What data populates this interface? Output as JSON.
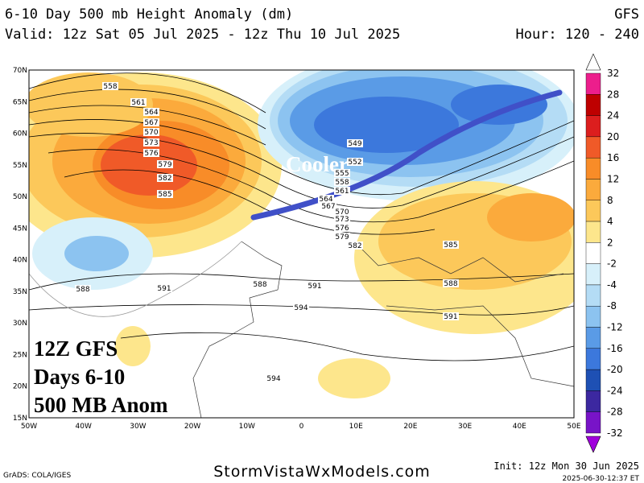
{
  "header": {
    "title": "6-10 Day 500 mb Height Anomaly (dm)",
    "valid": "Valid: 12z Sat 05 Jul 2025 - 12z Thu 10 Jul 2025",
    "model": "GFS",
    "hour": "Hour: 120 - 240"
  },
  "map": {
    "lat_labels": [
      "70N",
      "65N",
      "60N",
      "55N",
      "50N",
      "45N",
      "40N",
      "35N",
      "30N",
      "25N",
      "20N",
      "15N"
    ],
    "lon_labels": [
      "50W",
      "40W",
      "30W",
      "20W",
      "10W",
      "0",
      "10E",
      "20E",
      "30E",
      "40E",
      "50E"
    ],
    "contour_labels": [
      558,
      561,
      564,
      567,
      570,
      573,
      576,
      579,
      582,
      585,
      549,
      552,
      555,
      558,
      561,
      564,
      567,
      570,
      573,
      576,
      579,
      582,
      585,
      588,
      591,
      588,
      591,
      588,
      591,
      594,
      594
    ],
    "annotation": "Cooler",
    "overlay_lines": [
      "12Z GFS",
      "Days 6-10",
      "500 MB Anom"
    ]
  },
  "colorbar": {
    "labels": [
      32,
      28,
      24,
      20,
      16,
      12,
      8,
      4,
      2,
      -2,
      -4,
      -8,
      -12,
      -16,
      -20,
      -24,
      -28,
      -32
    ]
  },
  "footer": {
    "credit": "GrADS: COLA/IGES",
    "site": "StormVistaWxModels.com",
    "init": "Init: 12z Mon 30 Jun 2025",
    "timestamp": "2025-06-30-12:37 ET"
  }
}
